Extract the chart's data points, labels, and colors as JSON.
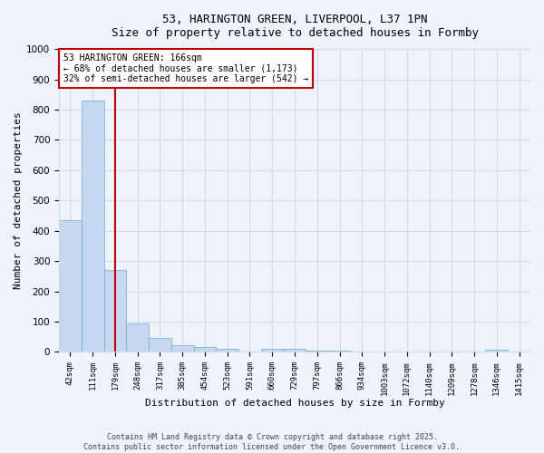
{
  "title_line1": "53, HARINGTON GREEN, LIVERPOOL, L37 1PN",
  "title_line2": "Size of property relative to detached houses in Formby",
  "xlabel": "Distribution of detached houses by size in Formby",
  "ylabel": "Number of detached properties",
  "bin_labels": [
    "42sqm",
    "111sqm",
    "179sqm",
    "248sqm",
    "317sqm",
    "385sqm",
    "454sqm",
    "523sqm",
    "591sqm",
    "660sqm",
    "729sqm",
    "797sqm",
    "866sqm",
    "934sqm",
    "1003sqm",
    "1072sqm",
    "1140sqm",
    "1209sqm",
    "1278sqm",
    "1346sqm",
    "1415sqm"
  ],
  "bar_values": [
    435,
    830,
    270,
    95,
    45,
    22,
    16,
    10,
    0,
    10,
    10,
    5,
    5,
    0,
    0,
    0,
    0,
    0,
    0,
    8,
    0
  ],
  "bar_color": "#c5d8f0",
  "bar_edge_color": "#6aaad4",
  "ylim": [
    0,
    1000
  ],
  "yticks": [
    0,
    100,
    200,
    300,
    400,
    500,
    600,
    700,
    800,
    900,
    1000
  ],
  "red_line_x": 2,
  "annotation_text": "53 HARINGTON GREEN: 166sqm\n← 68% of detached houses are smaller (1,173)\n32% of semi-detached houses are larger (542) →",
  "annotation_box_color": "#ffffff",
  "annotation_box_edge": "#cc0000",
  "red_line_color": "#cc0000",
  "footnote": "Contains HM Land Registry data © Crown copyright and database right 2025.\nContains public sector information licensed under the Open Government Licence v3.0.",
  "background_color": "#eef2fa",
  "grid_color": "#c8d4e8",
  "title_fontsize": 10,
  "subtitle_fontsize": 9
}
